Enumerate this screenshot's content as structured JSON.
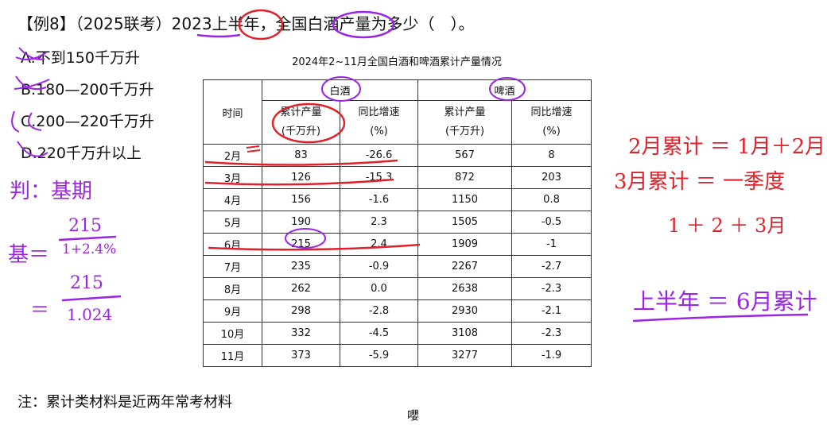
{
  "question": {
    "tag": "【例8】",
    "source": "（2025联考）",
    "year": "2023",
    "term": "上半年",
    "rest": "，全国白酒产量为多少（　）。"
  },
  "options": [
    "A.不到150千万升",
    "B.180—200千万升",
    "C.200—220千万升",
    "D.220千万升以上"
  ],
  "table": {
    "title": "2024年2~11月全国白酒和啤酒累计产量情况",
    "col_time": "时间",
    "group_baijiu": "白酒",
    "group_pijiu": "啤酒",
    "sub_cum_line1": "累计产量",
    "sub_cum_line2": "(千万升)",
    "sub_yoy_line1": "同比增速",
    "sub_yoy_line2": "(%)",
    "rows": [
      [
        "2月",
        "83",
        "-26.6",
        "567",
        "8"
      ],
      [
        "3月",
        "126",
        "-15.3",
        "872",
        "203"
      ],
      [
        "4月",
        "156",
        "-1.6",
        "1150",
        "0.8"
      ],
      [
        "5月",
        "190",
        "2.3",
        "1505",
        "-0.5"
      ],
      [
        "6月",
        "215",
        "2.4",
        "1909",
        "-1"
      ],
      [
        "7月",
        "235",
        "-0.9",
        "2267",
        "-2.7"
      ],
      [
        "8月",
        "262",
        "0.0",
        "2638",
        "-2.3"
      ],
      [
        "9月",
        "298",
        "-2.8",
        "2930",
        "-2.1"
      ],
      [
        "10月",
        "332",
        "-4.5",
        "3108",
        "-2.3"
      ],
      [
        "11月",
        "373",
        "-5.9",
        "3277",
        "-1.9"
      ]
    ]
  },
  "note": "注：累计类材料是近两年常考材料",
  "bottom_glyph": "嚶",
  "handwriting": {
    "left1": "判：基期",
    "left2_prefix": "基＝",
    "left2_num": "215",
    "left2_den": "1+2.4%",
    "left3_prefix": "＝",
    "left3_num": "215",
    "left3_den": "1.024",
    "right1": "2月累计 ＝ 1月＋2月",
    "right2": "3月累计 ＝ 一季度",
    "right3": "1 ＋ 2 ＋ 3月",
    "right4": "上半年 ＝ 6月累计"
  }
}
